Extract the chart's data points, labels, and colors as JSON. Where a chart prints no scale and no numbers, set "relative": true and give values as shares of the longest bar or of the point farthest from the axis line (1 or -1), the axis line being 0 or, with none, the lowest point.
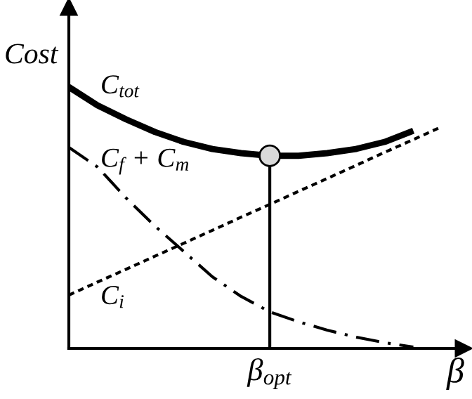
{
  "chart_data": {
    "type": "line",
    "relative": true,
    "xlabel": "β",
    "ylabel": "Cost",
    "legend": false,
    "categories": [
      null,
      null,
      null,
      null,
      null,
      null,
      null,
      null,
      null,
      null,
      null,
      null,
      null,
      null
    ],
    "annotations": [
      "β$_{opt}$"
    ],
    "series": [
      {
        "name": "C$_{tot}$",
        "color": "#000000",
        "line_style": "solid",
        "values": [
          1.0,
          0.93,
          0.876,
          0.828,
          0.79,
          0.763,
          0.747,
          0.737,
          0.737,
          0.747,
          0.763,
          0.79,
          0.833,
          null
        ]
      },
      {
        "name": "C$_{f}$ + C$_{m}$",
        "color": "#000000",
        "line_style": "dashdot",
        "values": [
          0.769,
          0.694,
          0.575,
          0.468,
          0.371,
          0.274,
          0.199,
          0.14,
          0.102,
          0.07,
          0.043,
          0.022,
          0.005,
          null
        ]
      },
      {
        "name": "C$_{i}$",
        "color": "#000000",
        "line_style": "dotted",
        "values": [
          0.204,
          0.254,
          0.303,
          0.353,
          0.402,
          0.452,
          0.502,
          0.551,
          0.601,
          0.65,
          0.7,
          0.75,
          0.799,
          0.849
        ]
      }
    ]
  }
}
